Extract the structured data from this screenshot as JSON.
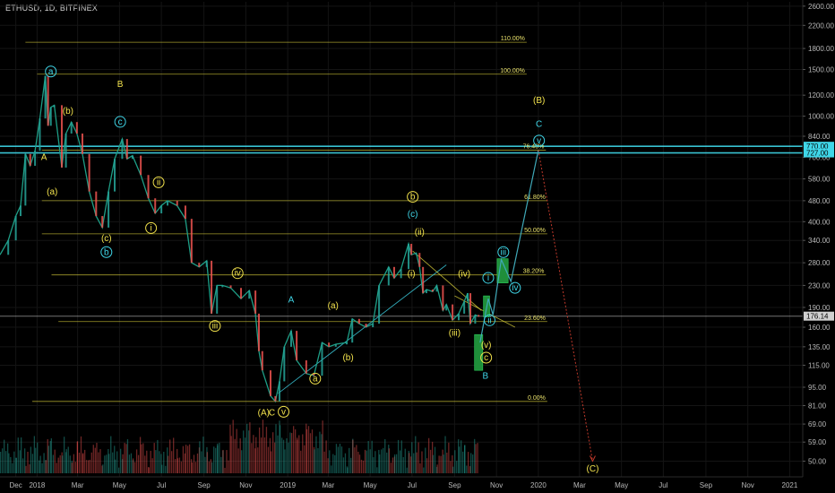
{
  "header": {
    "title": "ETHUSD, 1D, BITFINEX"
  },
  "colors": {
    "background": "#000000",
    "fib": "#d6cc3a",
    "cyan": "#3fd6e8",
    "yellow": "#f2e24c",
    "projection": "#3fa9b8",
    "projection_box": "#1f8f3a",
    "down_target": "#c0392b",
    "price_up": "#26a69a",
    "price_down": "#ef5350",
    "grid": "#141414"
  },
  "chart_data": {
    "type": "line",
    "xlabel": "",
    "ylabel": "",
    "y_scale": "log",
    "ylim": [
      45,
      2700
    ],
    "x_range": [
      "2017-11-08",
      "2021-01-20"
    ],
    "y_ticks": [
      "2600.00",
      "2200.00",
      "1800.00",
      "1500.00",
      "1200.00",
      "1000.00",
      "840.00",
      "700.00",
      "580.00",
      "480.00",
      "400.00",
      "340.00",
      "280.00",
      "230.00",
      "190.00",
      "160.00",
      "135.00",
      "115.00",
      "95.00",
      "81.00",
      "69.00",
      "59.00",
      "50.00"
    ],
    "x_ticks": [
      {
        "label": "Dec",
        "date": "2017-12-01"
      },
      {
        "label": "2018",
        "date": "2018-01-01"
      },
      {
        "label": "Mar",
        "date": "2018-03-01"
      },
      {
        "label": "May",
        "date": "2018-05-01"
      },
      {
        "label": "Jul",
        "date": "2018-07-01"
      },
      {
        "label": "Sep",
        "date": "2018-09-01"
      },
      {
        "label": "Nov",
        "date": "2018-11-01"
      },
      {
        "label": "2019",
        "date": "2019-01-01"
      },
      {
        "label": "Mar",
        "date": "2019-03-01"
      },
      {
        "label": "May",
        "date": "2019-05-01"
      },
      {
        "label": "Jul",
        "date": "2019-07-01"
      },
      {
        "label": "Sep",
        "date": "2019-09-01"
      },
      {
        "label": "Nov",
        "date": "2019-11-01"
      },
      {
        "label": "2020",
        "date": "2020-01-01"
      },
      {
        "label": "Mar",
        "date": "2020-03-01"
      },
      {
        "label": "May",
        "date": "2020-05-01"
      },
      {
        "label": "Jul",
        "date": "2020-07-01"
      },
      {
        "label": "Sep",
        "date": "2020-09-01"
      },
      {
        "label": "Nov",
        "date": "2020-11-01"
      },
      {
        "label": "2021",
        "date": "2021-01-01"
      }
    ],
    "price_tags": [
      {
        "label": "770.00",
        "value": 770,
        "color": "#3fd6e8"
      },
      {
        "label": "727.00",
        "value": 727,
        "color": "#3fd6e8"
      },
      {
        "label": "176.14",
        "value": 176.14,
        "color": "#d0d0d0"
      }
    ],
    "fib_levels": [
      {
        "label": "110.00%",
        "value": 1900,
        "x_from": "2017-12-15",
        "x_to": "2019-12-15"
      },
      {
        "label": "100.00%",
        "value": 1440,
        "x_from": "2018-01-01",
        "x_to": "2019-12-15"
      },
      {
        "label": "76.40%",
        "value": 745,
        "x_from": "2018-01-08",
        "x_to": "2020-01-12"
      },
      {
        "label": "61.80%",
        "value": 480,
        "x_from": "2018-01-08",
        "x_to": "2020-01-14"
      },
      {
        "label": "50.00%",
        "value": 360,
        "x_from": "2018-01-08",
        "x_to": "2020-01-14"
      },
      {
        "label": "38.20%",
        "value": 252,
        "x_from": "2018-01-22",
        "x_to": "2020-01-12"
      },
      {
        "label": "23.60%",
        "value": 168,
        "x_from": "2018-02-01",
        "x_to": "2020-01-14"
      },
      {
        "label": "0.00%",
        "value": 84,
        "x_from": "2017-12-25",
        "x_to": "2020-01-14"
      }
    ],
    "series": [
      {
        "type": "line",
        "points": [
          [
            "2017-11-08",
            300
          ],
          [
            "2017-11-20",
            340
          ],
          [
            "2017-12-01",
            420
          ],
          [
            "2017-12-08",
            460
          ],
          [
            "2017-12-15",
            720
          ],
          [
            "2017-12-22",
            650
          ],
          [
            "2017-12-29",
            740
          ],
          [
            "2018-01-05",
            980
          ],
          [
            "2018-01-13",
            1420
          ],
          [
            "2018-01-17",
            920
          ],
          [
            "2018-01-21",
            1080
          ],
          [
            "2018-01-26",
            1100
          ],
          [
            "2018-02-06",
            640
          ],
          [
            "2018-02-12",
            860
          ],
          [
            "2018-02-20",
            950
          ],
          [
            "2018-02-28",
            860
          ],
          [
            "2018-03-08",
            720
          ],
          [
            "2018-03-18",
            520
          ],
          [
            "2018-03-28",
            420
          ],
          [
            "2018-04-06",
            380
          ],
          [
            "2018-04-15",
            520
          ],
          [
            "2018-04-24",
            690
          ],
          [
            "2018-05-05",
            820
          ],
          [
            "2018-05-12",
            690
          ],
          [
            "2018-05-20",
            710
          ],
          [
            "2018-06-01",
            600
          ],
          [
            "2018-06-12",
            490
          ],
          [
            "2018-06-22",
            430
          ],
          [
            "2018-07-01",
            460
          ],
          [
            "2018-07-10",
            480
          ],
          [
            "2018-07-24",
            460
          ],
          [
            "2018-08-05",
            410
          ],
          [
            "2018-08-14",
            280
          ],
          [
            "2018-08-25",
            270
          ],
          [
            "2018-09-05",
            285
          ],
          [
            "2018-09-12",
            180
          ],
          [
            "2018-09-20",
            230
          ],
          [
            "2018-09-28",
            230
          ],
          [
            "2018-10-10",
            225
          ],
          [
            "2018-10-25",
            205
          ],
          [
            "2018-11-06",
            220
          ],
          [
            "2018-11-15",
            180
          ],
          [
            "2018-11-20",
            130
          ],
          [
            "2018-11-25",
            110
          ],
          [
            "2018-12-07",
            88
          ],
          [
            "2018-12-14",
            84
          ],
          [
            "2018-12-20",
            100
          ],
          [
            "2018-12-27",
            135
          ],
          [
            "2019-01-06",
            155
          ],
          [
            "2019-01-14",
            120
          ],
          [
            "2019-01-28",
            107
          ],
          [
            "2019-02-08",
            105
          ],
          [
            "2019-02-20",
            140
          ],
          [
            "2019-03-02",
            135
          ],
          [
            "2019-03-12",
            138
          ],
          [
            "2019-03-28",
            140
          ],
          [
            "2019-04-05",
            172
          ],
          [
            "2019-04-15",
            165
          ],
          [
            "2019-04-25",
            160
          ],
          [
            "2019-05-05",
            165
          ],
          [
            "2019-05-14",
            230
          ],
          [
            "2019-05-28",
            270
          ],
          [
            "2019-06-05",
            245
          ],
          [
            "2019-06-15",
            265
          ],
          [
            "2019-06-26",
            330
          ],
          [
            "2019-06-30",
            300
          ],
          [
            "2019-07-07",
            305
          ],
          [
            "2019-07-12",
            270
          ],
          [
            "2019-07-17",
            215
          ],
          [
            "2019-07-22",
            222
          ],
          [
            "2019-07-31",
            218
          ],
          [
            "2019-08-06",
            230
          ],
          [
            "2019-08-15",
            185
          ],
          [
            "2019-08-20",
            195
          ],
          [
            "2019-08-29",
            170
          ],
          [
            "2019-09-07",
            180
          ],
          [
            "2019-09-15",
            200
          ],
          [
            "2019-09-20",
            215
          ],
          [
            "2019-09-24",
            165
          ],
          [
            "2019-10-01",
            178
          ],
          [
            "2019-10-06",
            176
          ]
        ]
      },
      {
        "type": "projection",
        "points": [
          [
            "2019-10-08",
            140
          ],
          [
            "2019-10-20",
            205
          ],
          [
            "2019-10-27",
            178
          ],
          [
            "2019-11-08",
            288
          ],
          [
            "2019-11-22",
            238
          ],
          [
            "2020-01-01",
            745
          ],
          [
            "2020-03-20",
            50
          ]
        ]
      }
    ],
    "trendlines": [
      {
        "from": [
          "2018-12-18",
          90
        ],
        "to": [
          "2019-08-20",
          275
        ]
      },
      {
        "from": [
          "2019-07-02",
          310
        ],
        "to": [
          "2019-10-10",
          185
        ]
      },
      {
        "from": [
          "2019-09-01",
          210
        ],
        "to": [
          "2019-11-28",
          160
        ]
      }
    ],
    "boxes": [
      {
        "from": [
          "2019-09-30",
          150
        ],
        "to": [
          "2019-10-12",
          110
        ]
      },
      {
        "from": [
          "2019-10-13",
          210
        ],
        "to": [
          "2019-10-22",
          175
        ]
      },
      {
        "from": [
          "2019-11-02",
          290
        ],
        "to": [
          "2019-11-18",
          235
        ]
      }
    ],
    "wave_labels": [
      {
        "text": "a",
        "date": "2018-01-21",
        "value": 1440,
        "color": "cyan",
        "circle": true
      },
      {
        "text": "(b)",
        "date": "2018-02-15",
        "value": 1030,
        "color": "yellow",
        "circle": false
      },
      {
        "text": "B",
        "date": "2018-05-02",
        "value": 1300,
        "color": "yellow",
        "circle": false
      },
      {
        "text": "c",
        "date": "2018-05-02",
        "value": 930,
        "color": "cyan",
        "circle": true
      },
      {
        "text": "A",
        "date": "2018-01-11",
        "value": 690,
        "color": "yellow",
        "circle": false
      },
      {
        "text": "(a)",
        "date": "2018-01-23",
        "value": 510,
        "color": "yellow",
        "circle": false
      },
      {
        "text": "ii",
        "date": "2018-06-27",
        "value": 550,
        "color": "yellow",
        "circle": true
      },
      {
        "text": "i",
        "date": "2018-06-16",
        "value": 370,
        "color": "yellow",
        "circle": true
      },
      {
        "text": "(c)",
        "date": "2018-04-12",
        "value": 340,
        "color": "yellow",
        "circle": false
      },
      {
        "text": "b",
        "date": "2018-04-12",
        "value": 300,
        "color": "cyan",
        "circle": true
      },
      {
        "text": "iv",
        "date": "2018-10-20",
        "value": 250,
        "color": "yellow",
        "circle": true
      },
      {
        "text": "iii",
        "date": "2018-09-17",
        "value": 158,
        "color": "yellow",
        "circle": true
      },
      {
        "text": "A",
        "date": "2019-01-06",
        "value": 200,
        "color": "cyan",
        "circle": false
      },
      {
        "text": "(a)",
        "date": "2019-03-08",
        "value": 190,
        "color": "yellow",
        "circle": false
      },
      {
        "text": "(b)",
        "date": "2019-03-30",
        "value": 121,
        "color": "yellow",
        "circle": false
      },
      {
        "text": "a",
        "date": "2019-02-10",
        "value": 100,
        "color": "yellow",
        "circle": true
      },
      {
        "text": "(A)",
        "date": "2018-11-27",
        "value": 75,
        "color": "yellow",
        "circle": false
      },
      {
        "text": "C",
        "date": "2018-12-09",
        "value": 75,
        "color": "yellow",
        "circle": false
      },
      {
        "text": "v",
        "date": "2018-12-26",
        "value": 75,
        "color": "yellow",
        "circle": true
      },
      {
        "text": "b",
        "date": "2019-07-02",
        "value": 485,
        "color": "yellow",
        "circle": true
      },
      {
        "text": "(c)",
        "date": "2019-07-02",
        "value": 420,
        "color": "cyan",
        "circle": false
      },
      {
        "text": "(ii)",
        "date": "2019-07-12",
        "value": 360,
        "color": "yellow",
        "circle": false
      },
      {
        "text": "(i)",
        "date": "2019-06-30",
        "value": 250,
        "color": "yellow",
        "circle": false
      },
      {
        "text": "(iv)",
        "date": "2019-09-15",
        "value": 250,
        "color": "yellow",
        "circle": false
      },
      {
        "text": "(iii)",
        "date": "2019-09-01",
        "value": 150,
        "color": "yellow",
        "circle": false
      },
      {
        "text": "i",
        "date": "2019-10-20",
        "value": 240,
        "color": "cyan",
        "circle": true
      },
      {
        "text": "ii",
        "date": "2019-10-22",
        "value": 166,
        "color": "cyan",
        "circle": true
      },
      {
        "text": "(v)",
        "date": "2019-10-17",
        "value": 135,
        "color": "yellow",
        "circle": false
      },
      {
        "text": "c",
        "date": "2019-10-17",
        "value": 120,
        "color": "yellow",
        "circle": true
      },
      {
        "text": "B",
        "date": "2019-10-16",
        "value": 103,
        "color": "cyan",
        "circle": false
      },
      {
        "text": "iii",
        "date": "2019-11-11",
        "value": 300,
        "color": "cyan",
        "circle": true
      },
      {
        "text": "iv",
        "date": "2019-11-28",
        "value": 220,
        "color": "cyan",
        "circle": true
      },
      {
        "text": "(B)",
        "date": "2020-01-02",
        "value": 1130,
        "color": "yellow",
        "circle": false
      },
      {
        "text": "C",
        "date": "2020-01-02",
        "value": 920,
        "color": "cyan",
        "circle": false
      },
      {
        "text": "v",
        "date": "2020-01-02",
        "value": 790,
        "color": "cyan",
        "circle": true
      },
      {
        "text": "(C)",
        "date": "2020-03-20",
        "value": 46,
        "color": "yellow",
        "circle": false
      }
    ]
  }
}
